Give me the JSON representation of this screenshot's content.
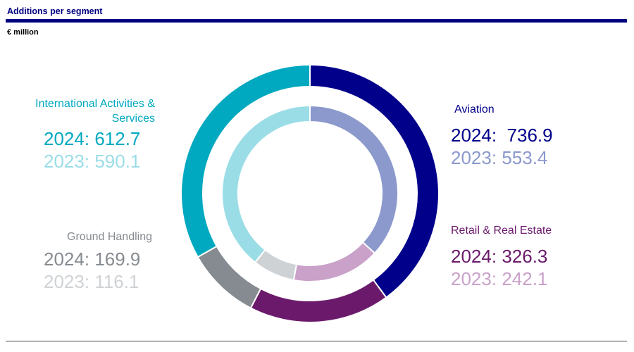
{
  "title": "Additions per segment",
  "unit": "€ million",
  "segments": [
    {
      "name": "Aviation",
      "v2024": "736.9",
      "v2023": "553.4",
      "label2024": "2024:",
      "label2023": "2023:",
      "color2024": "#00008b",
      "color2023": "#8b99cc"
    },
    {
      "name": "Retail & Real Estate",
      "v2024": "326.3",
      "v2023": "242.1",
      "label2024": "2024:",
      "label2023": "2023:",
      "color2024": "#6b1a6b",
      "color2023": "#c9a1c9"
    },
    {
      "name": "Ground Handling",
      "v2024": "169.9",
      "v2023": "116.1",
      "label2024": "2024:",
      "label2023": "2023:",
      "color2024": "#868b91",
      "color2023": "#cfd2d5"
    },
    {
      "name": "International Activities & Services",
      "v2024": "612.7",
      "v2023": "590.1",
      "label2024": "2024:",
      "label2023": "2023:",
      "color2024": "#00a9bf",
      "color2023": "#9adde6"
    }
  ],
  "chart_data": {
    "type": "pie",
    "title": "Additions per segment",
    "unit": "€ million",
    "categories": [
      "Aviation",
      "Retail & Real Estate",
      "Ground Handling",
      "International Activities & Services"
    ],
    "series": [
      {
        "name": "2024",
        "values": [
          736.9,
          326.3,
          169.9,
          612.7
        ],
        "ring": "outer"
      },
      {
        "name": "2023",
        "values": [
          553.4,
          242.1,
          116.1,
          590.1
        ],
        "ring": "inner"
      }
    ],
    "colors": {
      "2024": [
        "#00008b",
        "#6b1a6b",
        "#868b91",
        "#00a9bf"
      ],
      "2023": [
        "#8b99cc",
        "#c9a1c9",
        "#cfd2d5",
        "#9adde6"
      ]
    }
  }
}
